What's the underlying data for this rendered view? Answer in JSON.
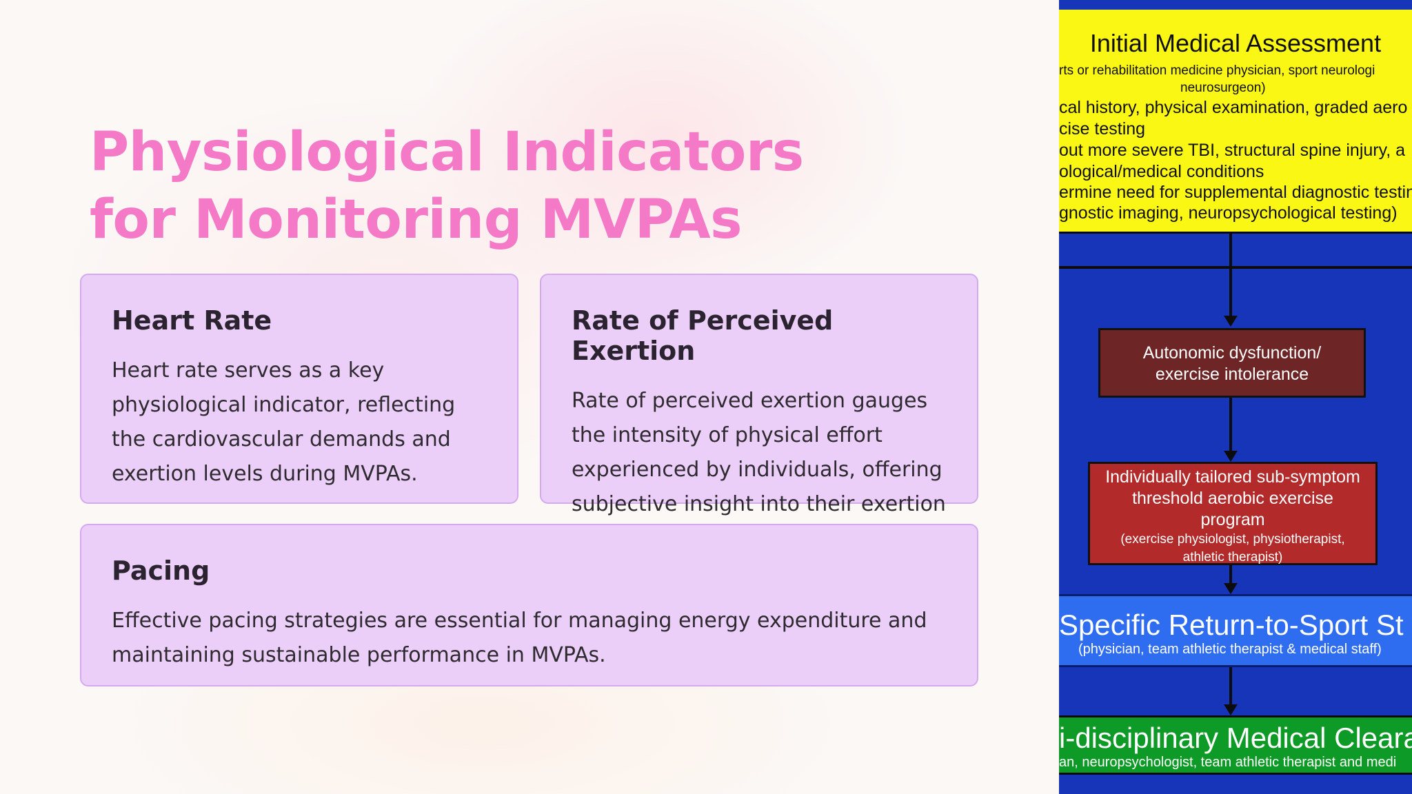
{
  "slide": {
    "title": "Physiological Indicators for Monitoring MVPAs",
    "cards": [
      {
        "heading": "Heart Rate",
        "body": "Heart rate serves as a key physiological indicator, reflecting the cardiovascular demands and exertion levels during MVPAs."
      },
      {
        "heading": "Rate of Perceived Exertion",
        "body": "Rate of perceived exertion gauges the intensity of physical effort experienced by individuals, offering subjective insight into their exertion levels."
      },
      {
        "heading": "Pacing",
        "body": "Effective pacing strategies are essential for managing energy expenditure and maintaining sustainable performance in MVPAs."
      }
    ]
  },
  "flowchart": {
    "initial_assessment": {
      "heading": "Initial Medical Assessment",
      "line1": "rts or rehabilitation  medicine physician, sport neurologi",
      "line2": "neurosurgeon)",
      "line3": "cal history, physical examination, graded aero",
      "line4": "cise testing",
      "line5": "out more severe TBI, structural spine injury,  a",
      "line6": "ological/medical conditions",
      "line7": "ermine need for supplemental diagnostic testin",
      "line8": "gnostic imaging, neuropsychological testing)"
    },
    "autonomic": {
      "line1": "Autonomic dysfunction/",
      "line2": "exercise intolerance"
    },
    "exercise_program": {
      "line1": "Individually  tailored sub-symptom",
      "line2": "threshold aerobic exercise",
      "line3": "program",
      "line4": "(exercise physiologist, physiotherapist,",
      "line5": "athletic therapist)"
    },
    "return_to_sport": {
      "heading": "Specific Return-to-Sport St",
      "sub": "(physician, team athletic therapist & medical staff)"
    },
    "clearance": {
      "heading": "i-disciplinary Medical Cleara",
      "sub": "an, neuropsychologist, team athletic therapist and medi"
    },
    "colors": {
      "background": "#1635b8",
      "yellow": "#fbf714",
      "dark_red": "#6e2525",
      "red": "#b32a2a",
      "blue": "#2e6cf0",
      "green": "#0e9a26"
    }
  }
}
